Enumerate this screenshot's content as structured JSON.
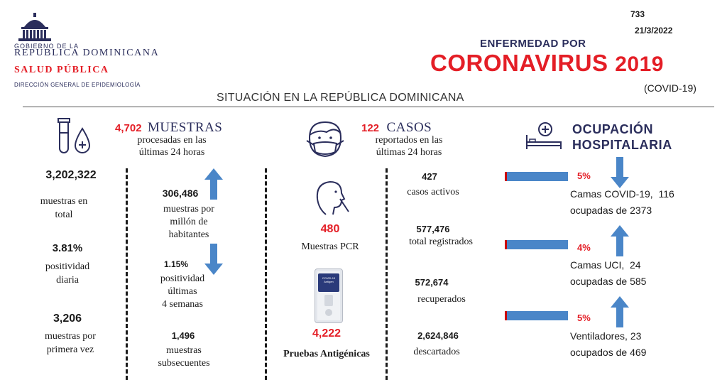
{
  "header": {
    "gov_line": "GOBIERNO DE LA",
    "republic": "REPÚBLICA DOMINICANA",
    "salud": "SALUD PÚBLICA",
    "direccion": "DIRECCIÓN GENERAL DE EPIDEMIOLOGÍA",
    "report_number": "733",
    "date": "21/3/2022",
    "enfermedad": "ENFERMEDAD POR",
    "coronavirus": "CORONAVIRUS",
    "year": "2019",
    "covid": "(COVID-19)",
    "situacion": "SITUACIÓN EN LA REPÚBLICA DOMINICANA"
  },
  "muestras": {
    "count": "4,702",
    "title": "MUESTRAS",
    "subtitle_1": "procesadas en las",
    "subtitle_2": "últimas 24 horas",
    "total_value": "3,202,322",
    "total_label_1": "muestras en",
    "total_label_2": "total",
    "pos_daily_value": "3.81%",
    "pos_daily_label_1": "positividad",
    "pos_daily_label_2": "diaria",
    "first_value": "3,206",
    "first_label_1": "muestras por",
    "first_label_2": "primera vez",
    "per_million_value": "306,486",
    "per_million_label_1": "muestras por",
    "per_million_label_2": "millón de",
    "per_million_label_3": "habitantes",
    "pos4w_value": "1.15%",
    "pos4w_label_1": "positividad",
    "pos4w_label_2": "últimas",
    "pos4w_label_3": "4 semanas",
    "subseq_value": "1,496",
    "subseq_label_1": "muestras",
    "subseq_label_2": "subsecuentes"
  },
  "casos": {
    "count": "122",
    "title": "CASOS",
    "subtitle_1": "reportados en las",
    "subtitle_2": "últimas 24 horas",
    "pcr_value": "480",
    "pcr_label": "Muestras PCR",
    "antigen_value": "4,222",
    "antigen_label": "Pruebas Antigénicas",
    "kit_label": "COVID-19 Antigen",
    "active_value": "427",
    "active_label": "casos activos",
    "registered_value": "577,476",
    "registered_label": "total registrados",
    "recovered_value": "572,674",
    "recovered_label": "recuperados",
    "discarded_value": "2,624,846",
    "discarded_label": "descartados"
  },
  "ocupacion": {
    "title_1": "OCUPACIÓN",
    "title_2": "HOSPITALARIA",
    "items": [
      {
        "pct": "5%",
        "line_1": "Camas COVID-19,  116",
        "line_2": "ocupadas de 2373",
        "trend": "down"
      },
      {
        "pct": "4%",
        "line_1": "Camas UCI,  24",
        "line_2": "ocupadas de 585",
        "trend": "up"
      },
      {
        "pct": "5%",
        "line_1": "Ventiladores, 23",
        "line_2": "ocupados de 469",
        "trend": "up"
      }
    ]
  },
  "colors": {
    "red": "#e41e26",
    "navy": "#2b2e5c",
    "arrow_blue": "#4a86c8",
    "bar_blue": "#4a86c8"
  }
}
